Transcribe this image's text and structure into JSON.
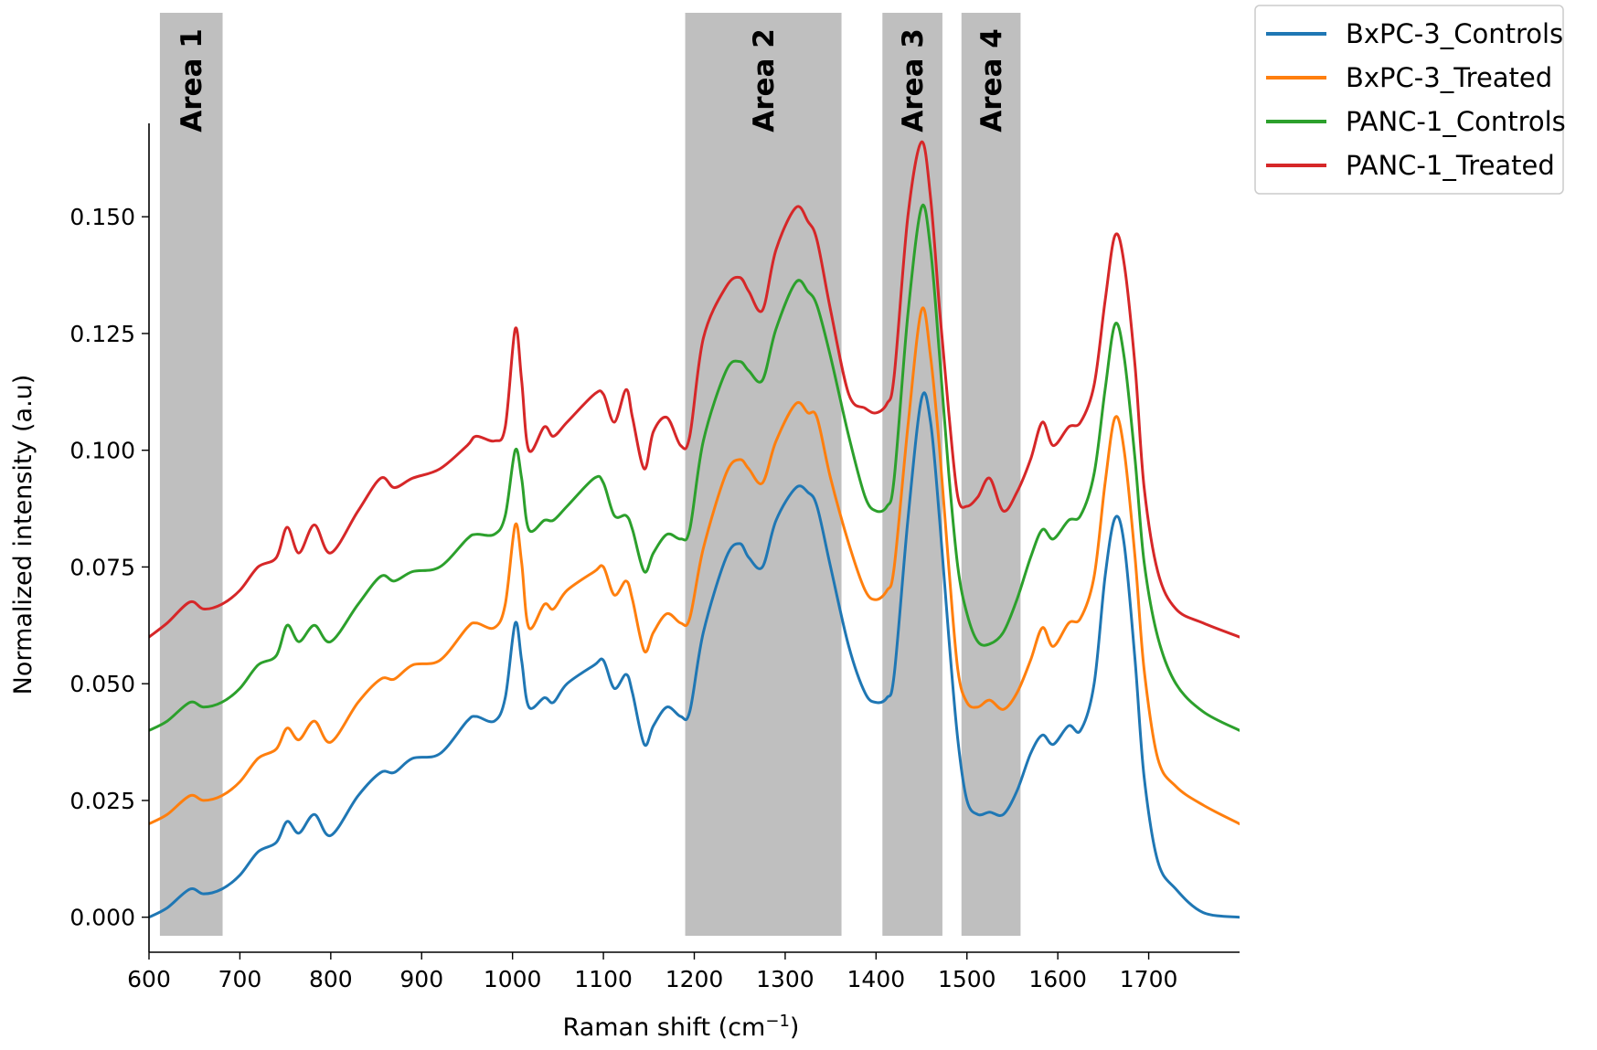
{
  "chart_data": {
    "type": "line",
    "title": "",
    "xlabel_main": "Raman shift (cm",
    "xlabel_sup": "−1",
    "xlabel_close": ")",
    "ylabel": "Normalized intensity (a.u)",
    "xlim": [
      600,
      1800
    ],
    "ylim": [
      -0.0075,
      0.17
    ],
    "xticks": [
      600,
      700,
      800,
      900,
      1000,
      1100,
      1200,
      1300,
      1400,
      1500,
      1600,
      1700
    ],
    "yticks": [
      "0.000",
      "0.025",
      "0.050",
      "0.075",
      "0.100",
      "0.125",
      "0.150"
    ],
    "legend_position": "outside-top-right",
    "grid": false,
    "areas": [
      {
        "label": "Area 1",
        "x0": 612,
        "x1": 681
      },
      {
        "label": "Area 2",
        "x0": 1190,
        "x1": 1362
      },
      {
        "label": "Area 3",
        "x0": 1407,
        "x1": 1473
      },
      {
        "label": "Area 4",
        "x0": 1494,
        "x1": 1559
      }
    ],
    "area_color": "#bfbfbf",
    "base_x": [
      600,
      620,
      645,
      660,
      680,
      700,
      720,
      740,
      752,
      765,
      782,
      800,
      830,
      855,
      870,
      890,
      920,
      950,
      960,
      980,
      992,
      1003,
      1010,
      1018,
      1035,
      1045,
      1060,
      1090,
      1100,
      1112,
      1125,
      1132,
      1145,
      1155,
      1170,
      1185,
      1195,
      1210,
      1235,
      1250,
      1260,
      1275,
      1290,
      1312,
      1325,
      1335,
      1350,
      1370,
      1388,
      1400,
      1412,
      1420,
      1435,
      1450,
      1460,
      1470,
      1480,
      1490,
      1500,
      1512,
      1525,
      1540,
      1555,
      1570,
      1583,
      1595,
      1612,
      1625,
      1640,
      1652,
      1663,
      1673,
      1685,
      1695,
      1710,
      1730,
      1760,
      1800
    ],
    "series": [
      {
        "name": "BxPC-3_Controls",
        "color": "#1f77b4",
        "offset": 0.0,
        "values": [
          0.0,
          0.002,
          0.006,
          0.005,
          0.006,
          0.009,
          0.014,
          0.016,
          0.0205,
          0.018,
          0.022,
          0.0175,
          0.026,
          0.031,
          0.031,
          0.034,
          0.035,
          0.042,
          0.043,
          0.042,
          0.047,
          0.063,
          0.055,
          0.045,
          0.047,
          0.046,
          0.05,
          0.054,
          0.055,
          0.049,
          0.052,
          0.048,
          0.037,
          0.041,
          0.045,
          0.043,
          0.044,
          0.061,
          0.077,
          0.08,
          0.077,
          0.075,
          0.085,
          0.092,
          0.091,
          0.088,
          0.075,
          0.058,
          0.048,
          0.046,
          0.047,
          0.052,
          0.085,
          0.111,
          0.106,
          0.085,
          0.06,
          0.038,
          0.025,
          0.022,
          0.0225,
          0.022,
          0.027,
          0.035,
          0.039,
          0.037,
          0.041,
          0.04,
          0.05,
          0.073,
          0.0855,
          0.08,
          0.055,
          0.03,
          0.012,
          0.006,
          0.001,
          0.0
        ]
      },
      {
        "name": "BxPC-3_Treated",
        "color": "#ff7f0e",
        "offset": 0.02,
        "values": [
          0.0,
          0.002,
          0.006,
          0.005,
          0.006,
          0.009,
          0.014,
          0.016,
          0.0205,
          0.018,
          0.022,
          0.0175,
          0.026,
          0.031,
          0.031,
          0.034,
          0.035,
          0.042,
          0.043,
          0.042,
          0.047,
          0.064,
          0.056,
          0.042,
          0.047,
          0.046,
          0.05,
          0.054,
          0.055,
          0.049,
          0.052,
          0.048,
          0.037,
          0.041,
          0.045,
          0.043,
          0.044,
          0.059,
          0.075,
          0.078,
          0.076,
          0.073,
          0.082,
          0.09,
          0.088,
          0.087,
          0.074,
          0.06,
          0.05,
          0.048,
          0.05,
          0.055,
          0.085,
          0.11,
          0.1,
          0.08,
          0.055,
          0.033,
          0.026,
          0.025,
          0.0265,
          0.0245,
          0.028,
          0.035,
          0.042,
          0.038,
          0.043,
          0.044,
          0.053,
          0.073,
          0.087,
          0.08,
          0.057,
          0.033,
          0.014,
          0.008,
          0.004,
          0.0
        ]
      },
      {
        "name": "PANC-1_Controls",
        "color": "#2ca02c",
        "offset": 0.04,
        "values": [
          0.0,
          0.002,
          0.006,
          0.005,
          0.006,
          0.009,
          0.014,
          0.016,
          0.0225,
          0.019,
          0.0225,
          0.019,
          0.027,
          0.033,
          0.032,
          0.034,
          0.035,
          0.041,
          0.042,
          0.042,
          0.046,
          0.06,
          0.054,
          0.043,
          0.045,
          0.045,
          0.048,
          0.054,
          0.053,
          0.046,
          0.046,
          0.043,
          0.034,
          0.038,
          0.042,
          0.041,
          0.043,
          0.062,
          0.077,
          0.079,
          0.077,
          0.075,
          0.086,
          0.096,
          0.094,
          0.091,
          0.08,
          0.063,
          0.05,
          0.047,
          0.048,
          0.054,
          0.089,
          0.112,
          0.103,
          0.08,
          0.055,
          0.035,
          0.025,
          0.019,
          0.0185,
          0.021,
          0.028,
          0.037,
          0.043,
          0.041,
          0.045,
          0.046,
          0.055,
          0.073,
          0.087,
          0.08,
          0.058,
          0.036,
          0.02,
          0.01,
          0.004,
          0.0
        ]
      },
      {
        "name": "PANC-1_Treated",
        "color": "#d62728",
        "offset": 0.06,
        "values": [
          0.0,
          0.003,
          0.0075,
          0.006,
          0.007,
          0.01,
          0.015,
          0.017,
          0.0235,
          0.018,
          0.024,
          0.018,
          0.027,
          0.034,
          0.032,
          0.034,
          0.036,
          0.041,
          0.043,
          0.042,
          0.045,
          0.066,
          0.055,
          0.04,
          0.045,
          0.043,
          0.046,
          0.052,
          0.052,
          0.046,
          0.053,
          0.047,
          0.036,
          0.044,
          0.047,
          0.041,
          0.043,
          0.064,
          0.075,
          0.077,
          0.074,
          0.07,
          0.083,
          0.092,
          0.089,
          0.085,
          0.07,
          0.052,
          0.049,
          0.048,
          0.05,
          0.056,
          0.09,
          0.106,
          0.094,
          0.07,
          0.048,
          0.03,
          0.028,
          0.03,
          0.034,
          0.027,
          0.031,
          0.038,
          0.046,
          0.041,
          0.045,
          0.046,
          0.054,
          0.072,
          0.086,
          0.08,
          0.058,
          0.032,
          0.014,
          0.006,
          0.003,
          0.0
        ]
      }
    ]
  }
}
